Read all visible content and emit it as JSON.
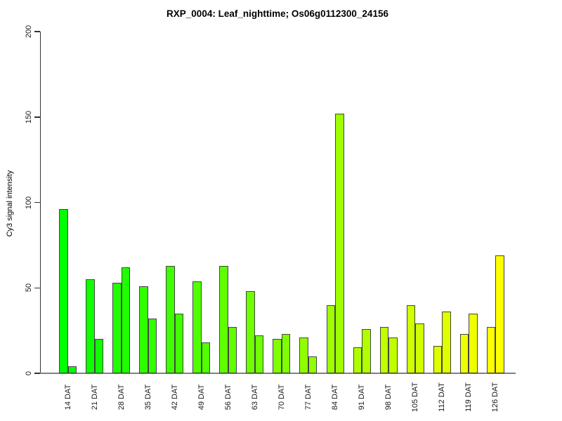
{
  "title": "RXP_0004: Leaf_nighttime; Os06g0112300_24156",
  "chart_data": {
    "type": "bar",
    "title": "RXP_0004: Leaf_nighttime; Os06g0112300_24156",
    "xlabel": "",
    "ylabel": "Cy3 signal intensity",
    "ylim": [
      0,
      200
    ],
    "yticks": [
      0,
      50,
      100,
      150,
      200
    ],
    "grid": false,
    "legend": false,
    "bars_per_group": 2,
    "categories": [
      "14 DAT",
      "21 DAT",
      "28 DAT",
      "35 DAT",
      "42 DAT",
      "49 DAT",
      "56 DAT",
      "63 DAT",
      "70 DAT",
      "77 DAT",
      "84 DAT",
      "91 DAT",
      "98 DAT",
      "105 DAT",
      "112 DAT",
      "119 DAT",
      "126 DAT"
    ],
    "values": [
      [
        96,
        4
      ],
      [
        55,
        20
      ],
      [
        53,
        62
      ],
      [
        51,
        32
      ],
      [
        63,
        35
      ],
      [
        54,
        18
      ],
      [
        63,
        27
      ],
      [
        48,
        22
      ],
      [
        20,
        23
      ],
      [
        21,
        10
      ],
      [
        40,
        152
      ],
      [
        15,
        26
      ],
      [
        27,
        21
      ],
      [
        40,
        29
      ],
      [
        16,
        36
      ],
      [
        23,
        35
      ],
      [
        27,
        69
      ]
    ],
    "group_colors": [
      "#00FF00",
      "#10FF00",
      "#20FF00",
      "#30FF00",
      "#40FF00",
      "#50FF00",
      "#60FF00",
      "#70FF00",
      "#80FF00",
      "#8FFF00",
      "#9FFF00",
      "#AFFF00",
      "#BFFF00",
      "#CFFF00",
      "#DFFF00",
      "#EFFF00",
      "#FFFF00"
    ],
    "bar_border_color": "#444444",
    "axis_color": "#333333",
    "baseline_color": "#808080",
    "background": "#FFFFFF"
  }
}
